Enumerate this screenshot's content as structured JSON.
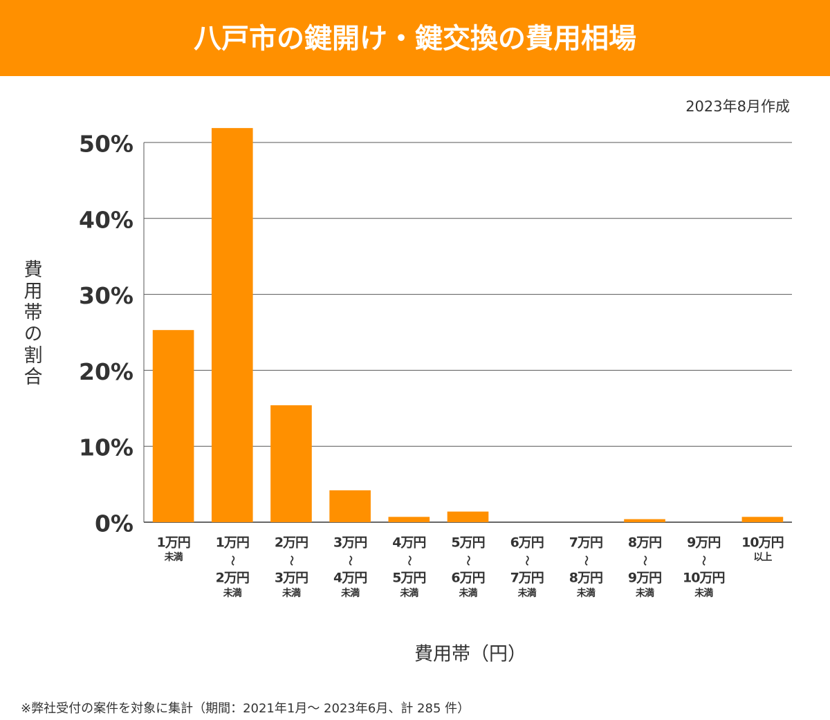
{
  "chart_data": {
    "type": "bar",
    "title": "八戸市の鍵開け・鍵交換の費用相場",
    "subtitle": "2023年8月作成",
    "y_label": "費用帯の割合",
    "x_label": "費用帯（円）",
    "footnote": "※弊社受付の案件を対象に集計（期間：2021年1月～ 2023年6月、計 285 件）",
    "categories": [
      [
        "1万円",
        "未満"
      ],
      [
        "1万円",
        "〜",
        "2万円",
        "未満"
      ],
      [
        "2万円",
        "〜",
        "3万円",
        "未満"
      ],
      [
        "3万円",
        "〜",
        "4万円",
        "未満"
      ],
      [
        "4万円",
        "〜",
        "5万円",
        "未満"
      ],
      [
        "5万円",
        "〜",
        "6万円",
        "未満"
      ],
      [
        "6万円",
        "〜",
        "7万円",
        "未満"
      ],
      [
        "7万円",
        "〜",
        "8万円",
        "未満"
      ],
      [
        "8万円",
        "〜",
        "9万円",
        "未満"
      ],
      [
        "9万円",
        "〜",
        "10万円",
        "未満"
      ],
      [
        "10万円",
        "以上"
      ]
    ],
    "values": [
      25.3,
      51.9,
      15.4,
      4.2,
      0.7,
      1.4,
      0,
      0,
      0.4,
      0,
      0.7
    ],
    "color": "#ff9000",
    "ylim": [
      0,
      50
    ],
    "yticks": [
      {
        "value": 0,
        "label": "0%"
      },
      {
        "value": 10,
        "label": "10%"
      },
      {
        "value": 20,
        "label": "20%"
      },
      {
        "value": 30,
        "label": "30%"
      },
      {
        "value": 40,
        "label": "40%"
      },
      {
        "value": 50,
        "label": "50%"
      }
    ],
    "grid": true
  }
}
